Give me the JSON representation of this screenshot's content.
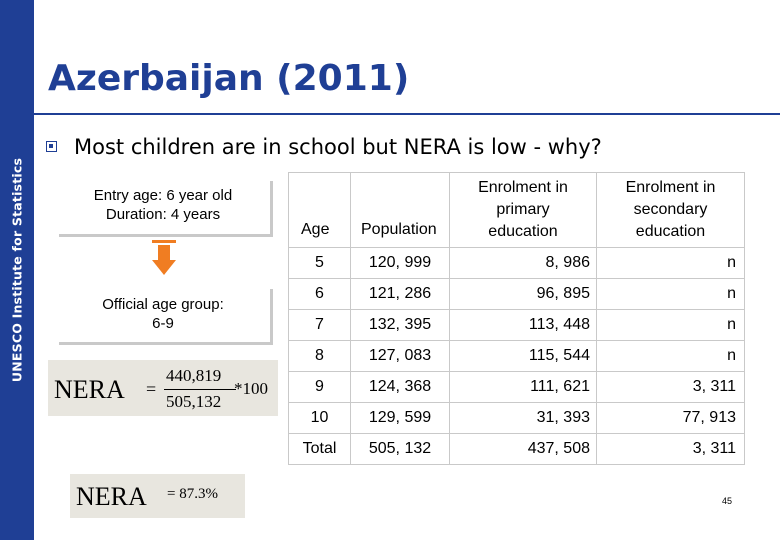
{
  "sidebar": {
    "label": "UNESCO Institute for Statistics",
    "color": "#1f3f95"
  },
  "slide": {
    "title": "Azerbaijan (2011)",
    "bullet_text": "Most children are in school but NERA is low - why?",
    "page_number": "45"
  },
  "boxes": {
    "entry_line1": "Entry age: 6 year old",
    "entry_line2": "Duration: 4 years",
    "official_line1": "Official age group:",
    "official_line2": "6-9"
  },
  "formula": {
    "label": "NERA",
    "equals": "=",
    "numerator": "440,819",
    "denominator": "505,132",
    "multiplier": "*100",
    "result_label": "NERA",
    "result": "= 87.3%"
  },
  "table": {
    "headers": {
      "age": "Age",
      "population": "Population",
      "primary_line1": "Enrolment in",
      "primary_line2": "primary",
      "primary_line3": "education",
      "secondary_line1": "Enrolment in",
      "secondary_line2": "secondary",
      "secondary_line3": "education"
    },
    "rows": [
      {
        "age": "5",
        "population": "120, 999",
        "primary": "8, 986",
        "secondary": "n"
      },
      {
        "age": "6",
        "population": "121, 286",
        "primary": "96, 895",
        "secondary": "n"
      },
      {
        "age": "7",
        "population": "132, 395",
        "primary": "113, 448",
        "secondary": "n"
      },
      {
        "age": "8",
        "population": "127, 083",
        "primary": "115, 544",
        "secondary": "n"
      },
      {
        "age": "9",
        "population": "124, 368",
        "primary": "111, 621",
        "secondary": "3, 311"
      },
      {
        "age": "10",
        "population": "129, 599",
        "primary": "31, 393",
        "secondary": "77, 913"
      },
      {
        "age": "Total",
        "population": "505, 132",
        "primary": "437, 508",
        "secondary": "3, 311"
      }
    ]
  },
  "colors": {
    "accent": "#1f3f95",
    "arrow": "#f07d22",
    "formula_bg": "#e8e6df"
  }
}
